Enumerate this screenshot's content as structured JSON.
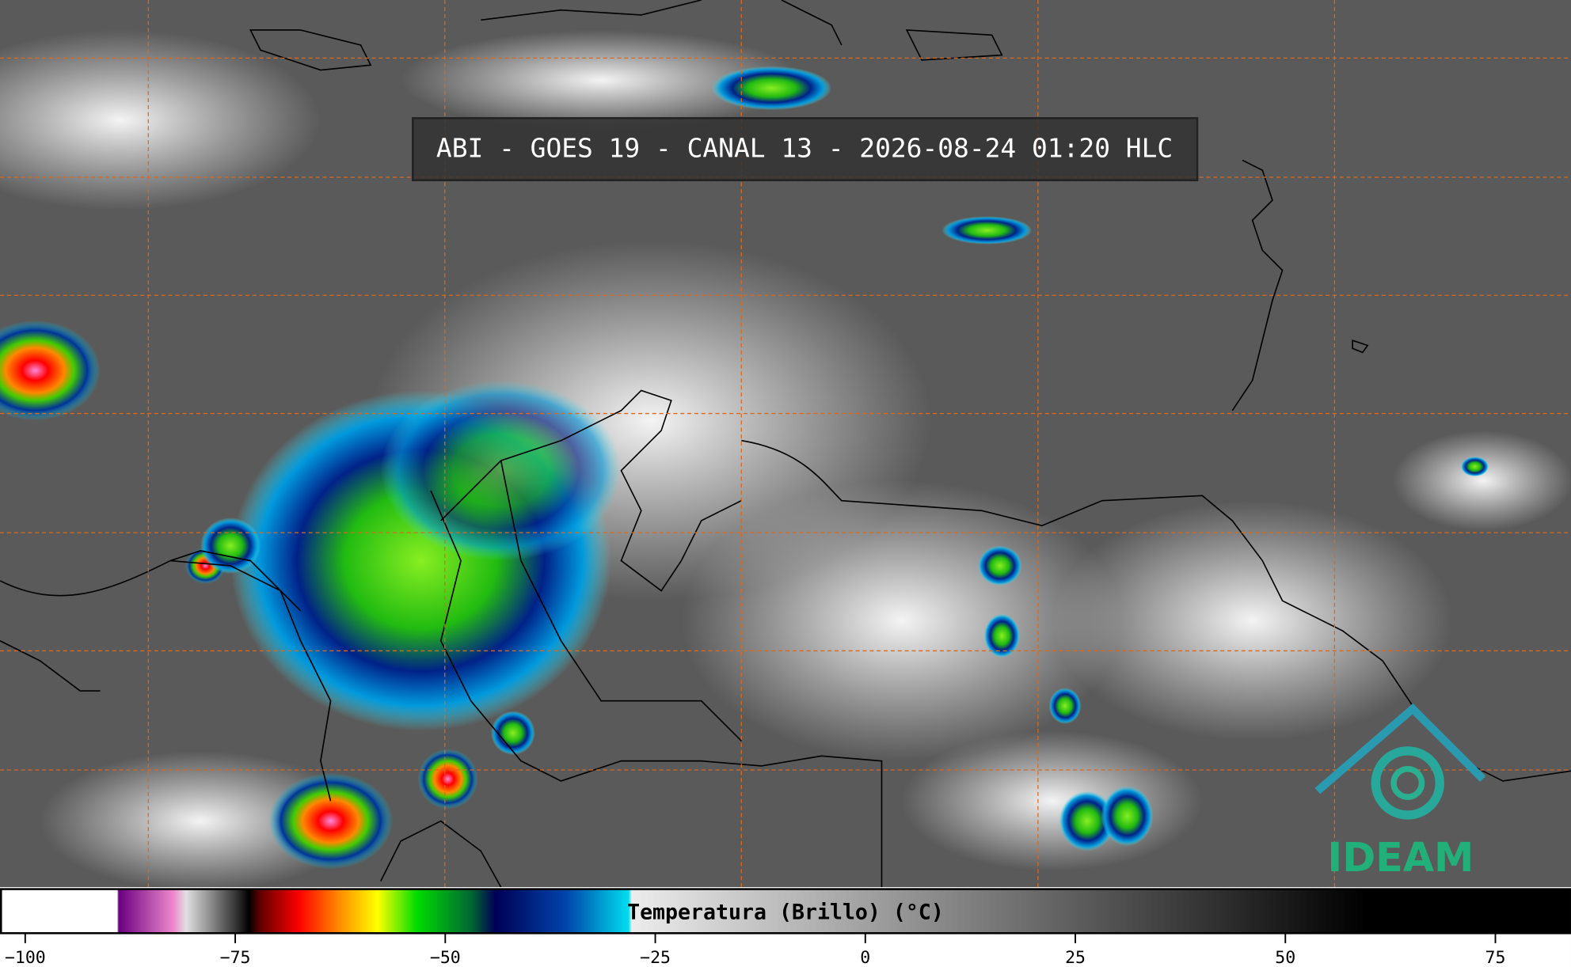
{
  "header": {
    "title": "ABI - GOES 19 - CANAL 13 - 2026-08-24 01:20 HLC"
  },
  "colorbar": {
    "label": "Temperatura (Brillo) (°C)",
    "range": [
      -103,
      84
    ],
    "ticks": [
      {
        "value": -100,
        "label": "−100"
      },
      {
        "value": -75,
        "label": "−75"
      },
      {
        "value": -50,
        "label": "−50"
      },
      {
        "value": -25,
        "label": "−25"
      },
      0,
      25,
      50,
      75
    ]
  },
  "logo": {
    "text": "IDEAM"
  }
}
